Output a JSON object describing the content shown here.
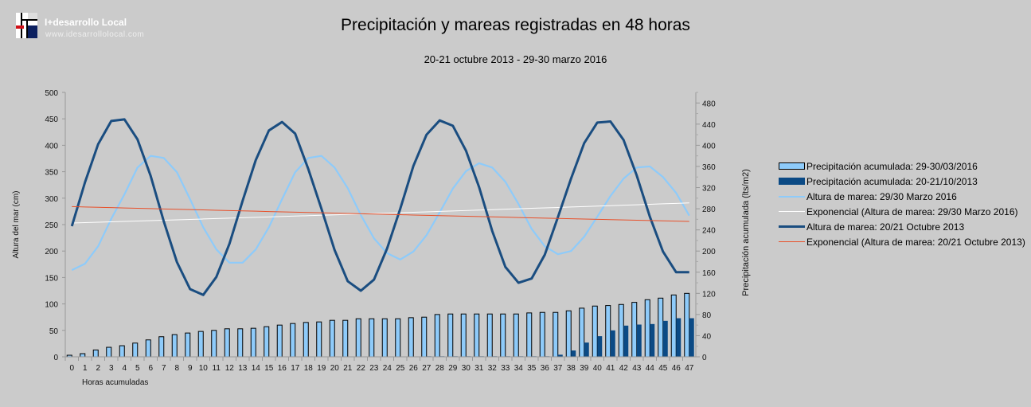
{
  "brand": {
    "name": "I+desarrollo Local",
    "url": "www.idesarrollolocal.com"
  },
  "chart_data": {
    "type": "bar+line",
    "title": "Precipitación y mareas registradas en 48 horas",
    "subtitle": "20-21 octubre 2013 - 29-30 marzo 2016",
    "xlabel": "Horas acumuladas",
    "ylabel": "Altura del mar (cm)",
    "y2label": "Precipitación acumulada (lts/m2)",
    "ylim": [
      0,
      500
    ],
    "y2lim": [
      0,
      500
    ],
    "yticks": [
      0,
      50,
      100,
      150,
      200,
      250,
      300,
      350,
      400,
      450,
      500
    ],
    "y2ticks": [
      0,
      40,
      80,
      120,
      160,
      200,
      240,
      280,
      320,
      360,
      400,
      440,
      480
    ],
    "categories": [
      0,
      1,
      2,
      3,
      4,
      5,
      6,
      7,
      8,
      9,
      10,
      11,
      12,
      13,
      14,
      15,
      16,
      17,
      18,
      19,
      20,
      21,
      22,
      23,
      24,
      25,
      26,
      27,
      28,
      29,
      30,
      31,
      32,
      33,
      34,
      35,
      36,
      37,
      38,
      39,
      40,
      41,
      42,
      43,
      44,
      45,
      46,
      47
    ],
    "grid": false,
    "legend_position": "right",
    "series": [
      {
        "name": "Precipitación acumulada: 29-30/03/2016",
        "type": "bar",
        "axis": "right",
        "color": "#8ecbfa",
        "values": [
          3,
          6,
          13,
          18,
          21,
          26,
          32,
          38,
          42,
          45,
          48,
          50,
          53,
          53,
          54,
          57,
          60,
          63,
          65,
          66,
          69,
          69,
          72,
          72,
          72,
          72,
          74,
          75,
          80,
          81,
          81,
          81,
          81,
          81,
          81,
          83,
          84,
          84,
          87,
          92,
          96,
          97,
          99,
          103,
          108,
          111,
          117,
          120
        ]
      },
      {
        "name": "Precipitación acumulada: 20-21/10/2013",
        "type": "bar",
        "axis": "right",
        "color": "#0b4a85",
        "values": [
          0,
          0,
          0,
          0,
          0,
          0,
          0,
          0,
          0,
          0,
          0,
          0,
          0,
          0,
          0,
          0,
          0,
          0,
          0,
          0,
          0,
          0,
          0,
          0,
          0,
          0,
          0,
          1,
          1,
          1,
          1,
          1,
          1,
          1,
          1,
          1,
          1,
          4,
          12,
          27,
          39,
          50,
          59,
          61,
          62,
          68,
          73,
          73
        ]
      },
      {
        "name": "Altura de marea: 29/30 Marzo 2016",
        "type": "line",
        "axis": "left",
        "color": "#8ecbfa",
        "values": [
          164,
          176,
          209,
          261,
          307,
          358,
          380,
          376,
          349,
          298,
          245,
          203,
          178,
          178,
          203,
          245,
          298,
          349,
          376,
          380,
          358,
          319,
          268,
          224,
          196,
          184,
          199,
          230,
          273,
          318,
          351,
          366,
          358,
          331,
          289,
          242,
          209,
          194,
          200,
          227,
          265,
          304,
          337,
          358,
          360,
          340,
          310,
          267
        ]
      },
      {
        "name": "Exponencial (Altura de marea: 29/30 Marzo 2016)",
        "type": "trend",
        "axis": "left",
        "color": "#ffffff",
        "start": 253,
        "end": 291
      },
      {
        "name": "Altura de marea: 20/21 Octubre 2013",
        "type": "line",
        "axis": "left",
        "color": "#1a4d80",
        "values": [
          247,
          330,
          402,
          446,
          449,
          411,
          342,
          256,
          179,
          128,
          117,
          151,
          214,
          295,
          372,
          428,
          444,
          422,
          355,
          280,
          202,
          143,
          125,
          146,
          205,
          280,
          361,
          420,
          447,
          437,
          390,
          321,
          238,
          170,
          140,
          148,
          193,
          264,
          337,
          404,
          443,
          445,
          410,
          343,
          265,
          199,
          160,
          160
        ]
      },
      {
        "name": "Exponencial (Altura de marea: 20/21 Octubre 2013)",
        "type": "trend",
        "axis": "left",
        "color": "#e8502a",
        "start": 284,
        "end": 256
      }
    ]
  }
}
